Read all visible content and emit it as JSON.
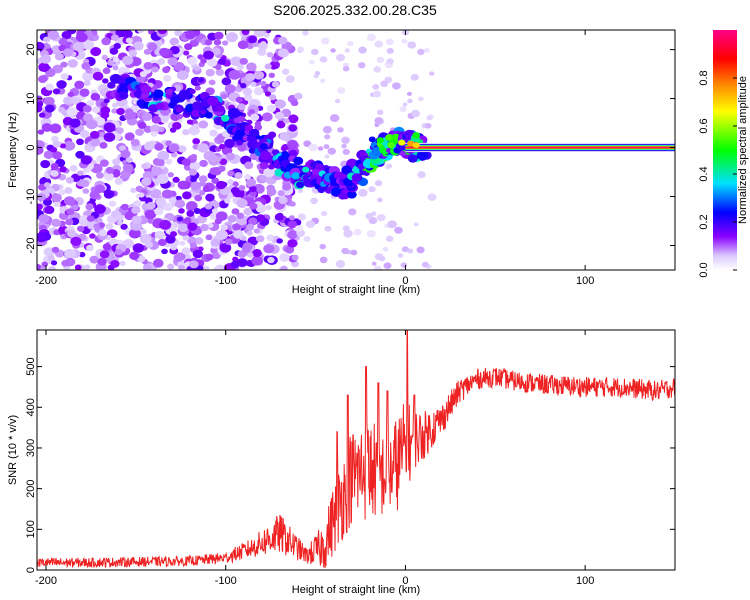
{
  "title": "S206.2025.332.00.28.C35",
  "chart_data": [
    {
      "type": "heatmap",
      "title": "",
      "xlabel": "Height of straight line (km)",
      "ylabel": "Frequency (Hz)",
      "xlim": [
        -205,
        150
      ],
      "ylim": [
        -25,
        24
      ],
      "xticks": [
        -200,
        -100,
        0,
        100
      ],
      "yticks": [
        -20,
        -10,
        0,
        10,
        20
      ],
      "xtick_labels": [
        "-200",
        "-100",
        "0",
        "100"
      ],
      "ytick_labels": [
        "-20",
        "-10",
        "0",
        "10",
        "20"
      ],
      "colorbar": {
        "label": "Normalized spectral amplitude",
        "range": [
          0,
          1
        ],
        "ticks": [
          0.0,
          0.2,
          0.4,
          0.6,
          0.8
        ],
        "tick_labels": [
          "0.0",
          "0.2",
          "0.4",
          "0.6",
          "0.8"
        ],
        "colormap": "rainbow-white",
        "colors": [
          "#ffffff",
          "#8800ff",
          "#0000ff",
          "#00e0ff",
          "#00ff00",
          "#ffff00",
          "#ff8000",
          "#ff0000",
          "#ff0088"
        ]
      },
      "features": [
        {
          "name": "carrier line",
          "frequency_hz": 0,
          "x_start_km": 0,
          "x_end_km": 150,
          "amplitude": 1.0
        },
        {
          "name": "doppler track",
          "points": [
            [
              -165,
              12
            ],
            [
              -130,
              10
            ],
            [
              -100,
              7
            ],
            [
              -80,
              0
            ],
            [
              -60,
              -5
            ],
            [
              -45,
              -6
            ],
            [
              -35,
              -8
            ],
            [
              -20,
              -2
            ],
            [
              -10,
              1
            ],
            [
              0,
              1
            ],
            [
              10,
              0
            ]
          ],
          "amplitude": 0.35
        },
        {
          "name": "noise",
          "x_range_km": [
            -205,
            -60
          ],
          "y_range_hz": [
            -25,
            24
          ],
          "amplitude": 0.12
        }
      ]
    },
    {
      "type": "line",
      "title": "",
      "xlabel": "Height of straight line (km)",
      "ylabel": "SNR (10 * v/v)",
      "xlim": [
        -205,
        150
      ],
      "ylim": [
        0,
        590
      ],
      "xticks": [
        -200,
        -100,
        0,
        100
      ],
      "yticks": [
        0,
        100,
        200,
        300,
        400,
        500
      ],
      "xtick_labels": [
        "-200",
        "-100",
        "0",
        "100"
      ],
      "ytick_labels": [
        "0",
        "100",
        "200",
        "300",
        "400",
        "500"
      ],
      "color": "#ee2222",
      "series": [
        {
          "name": "SNR",
          "x": [
            -205,
            -180,
            -150,
            -120,
            -100,
            -85,
            -70,
            -55,
            -45,
            -38,
            -30,
            -20,
            -10,
            -5,
            0,
            5,
            10,
            20,
            30,
            40,
            50,
            60,
            80,
            100,
            120,
            140,
            150
          ],
          "values": [
            18,
            18,
            20,
            22,
            30,
            55,
            90,
            35,
            60,
            150,
            230,
            250,
            230,
            260,
            300,
            320,
            330,
            370,
            440,
            470,
            475,
            465,
            455,
            450,
            450,
            440,
            450
          ],
          "noise": [
            12,
            12,
            12,
            12,
            14,
            25,
            50,
            20,
            60,
            100,
            120,
            130,
            100,
            120,
            120,
            80,
            60,
            40,
            30,
            25,
            25,
            25,
            25,
            25,
            25,
            25,
            25
          ],
          "peaks": [
            [
              1,
              590
            ],
            [
              -22,
              500
            ],
            [
              -15,
              460
            ],
            [
              -32,
              430
            ],
            [
              -10,
              440
            ],
            [
              -38,
              340
            ],
            [
              5,
              430
            ]
          ]
        }
      ]
    }
  ]
}
